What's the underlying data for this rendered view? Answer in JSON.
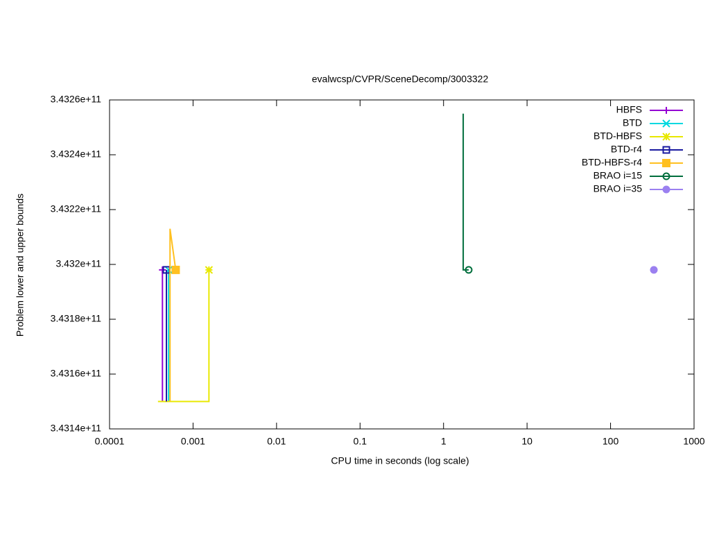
{
  "chart_data": {
    "type": "line",
    "title": "evalwcsp/CVPR/SceneDecomp/3003322",
    "x_label": "CPU time in seconds (log scale)",
    "y_label": "Problem lower and upper bounds",
    "xscale": "log",
    "xlim": [
      0.0001,
      1000
    ],
    "xticks": [
      0.0001,
      0.001,
      0.01,
      0.1,
      1,
      10,
      100,
      1000
    ],
    "ylim": [
      343140000000,
      343260000000
    ],
    "yticks": [
      {
        "value": 343140000000,
        "label": "3.4314e+11"
      },
      {
        "value": 343160000000,
        "label": "3.4316e+11"
      },
      {
        "value": 343180000000,
        "label": "3.4318e+11"
      },
      {
        "value": 343200000000,
        "label": "3.432e+11"
      },
      {
        "value": 343220000000,
        "label": "3.4322e+11"
      },
      {
        "value": 343240000000,
        "label": "3.4324e+11"
      },
      {
        "value": 343260000000,
        "label": "3.4326e+11"
      }
    ],
    "legend": "top-right",
    "series": [
      {
        "name": "HBFS",
        "color": "#9400d3",
        "marker": "plus",
        "x": [
          0.00043,
          0.00043
        ],
        "values": [
          343150000000,
          343198000000
        ]
      },
      {
        "name": "BTD",
        "color": "#00d8e0",
        "marker": "cross",
        "x": [
          0.00051,
          0.00051
        ],
        "values": [
          343150000000,
          343198000000
        ]
      },
      {
        "name": "BTD-HBFS",
        "color": "#e8e800",
        "marker": "star",
        "x": [
          0.00038,
          0.00155,
          0.00155
        ],
        "values": [
          343150000000,
          343150000000,
          343198000000
        ]
      },
      {
        "name": "BTD-r4",
        "color": "#1a1aa0",
        "marker": "square-open",
        "x": [
          0.00048,
          0.00048
        ],
        "values": [
          343150000000,
          343198000000
        ]
      },
      {
        "name": "BTD-HBFS-r4",
        "color": "#ffc020",
        "marker": "square",
        "x": [
          0.00053,
          0.00053,
          0.00062
        ],
        "values": [
          343150000000,
          343213000000,
          343198000000
        ]
      },
      {
        "name": "BRAO i=15",
        "color": "#006e3c",
        "marker": "circle-open",
        "x": [
          1.72,
          1.72,
          2.0
        ],
        "values": [
          343255000000,
          343198000000,
          343198000000
        ]
      },
      {
        "name": "BRAO i=35",
        "color": "#9b80f0",
        "marker": "circle",
        "x": [
          330
        ],
        "values": [
          343198000000
        ]
      }
    ]
  }
}
